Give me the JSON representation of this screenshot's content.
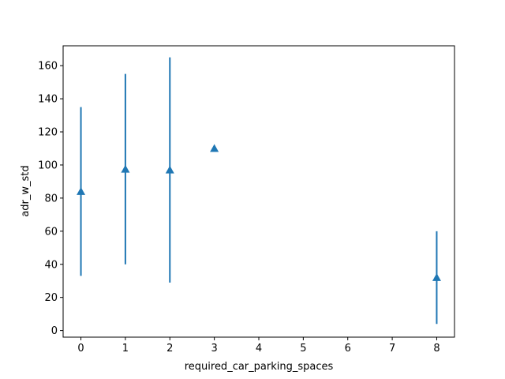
{
  "chart_data": {
    "type": "scatter",
    "xlabel": "required_car_parking_spaces",
    "ylabel": "adr_w_std",
    "xlim": [
      -0.4,
      8.4
    ],
    "ylim": [
      -4,
      172
    ],
    "xticks": [
      0,
      1,
      2,
      3,
      4,
      5,
      6,
      7,
      8
    ],
    "yticks": [
      0,
      20,
      40,
      60,
      80,
      100,
      120,
      140,
      160
    ],
    "grid": false,
    "color": "#1f77b4",
    "marker": "triangle-up",
    "points": [
      {
        "x": 0,
        "y": 84,
        "err_low": 33,
        "err_high": 135
      },
      {
        "x": 1,
        "y": 97.5,
        "err_low": 40,
        "err_high": 155
      },
      {
        "x": 2,
        "y": 97,
        "err_low": 29,
        "err_high": 165
      },
      {
        "x": 3,
        "y": 110,
        "err_low": null,
        "err_high": null
      },
      {
        "x": 8,
        "y": 32,
        "err_low": 4,
        "err_high": 60
      }
    ]
  }
}
